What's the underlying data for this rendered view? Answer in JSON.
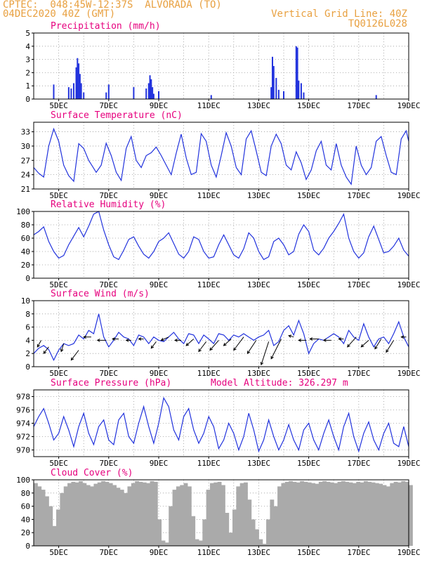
{
  "header": {
    "line1": "CPTEC:  048:45W-12:37S  ALVORADA (TO)",
    "line2": "04DEC2020 40Z (GMT)",
    "grid_note": "Vertical Grid Line: 40Z",
    "run_id": "TQ0126L028"
  },
  "colors": {
    "line": "#2233dd",
    "bar": "#2233dd",
    "cloud": "#aaaaaa",
    "title": "#e6007e",
    "header": "#e8a040",
    "grid": "#9a9a9a"
  },
  "chart_data": [
    {
      "type": "bar",
      "title": "Precipitation (mm/h)",
      "x_tick_labels": [
        "5DEC",
        "7DEC",
        "9DEC",
        "11DEC",
        "13DEC",
        "15DEC",
        "17DEC",
        "19DEC"
      ],
      "ylim": [
        0,
        5
      ],
      "y_ticks": [
        0,
        1,
        2,
        3,
        4,
        5
      ],
      "x_range_days": [
        4.0,
        19.0
      ],
      "x": [
        4.8,
        5.4,
        5.5,
        5.6,
        5.7,
        5.75,
        5.8,
        5.85,
        5.9,
        6.0,
        6.9,
        7.0,
        8.0,
        8.5,
        8.6,
        8.65,
        8.7,
        8.75,
        8.8,
        9.0,
        11.1,
        13.5,
        13.55,
        13.6,
        13.7,
        13.8,
        14.0,
        14.5,
        14.55,
        14.6,
        14.7,
        14.8,
        17.7
      ],
      "values": [
        1.1,
        0.9,
        0.8,
        1.2,
        2.4,
        3.1,
        2.7,
        1.9,
        1.2,
        0.5,
        0.5,
        1.1,
        0.9,
        0.8,
        1.2,
        1.8,
        1.5,
        0.9,
        0.4,
        0.6,
        0.3,
        0.9,
        3.2,
        2.5,
        1.6,
        0.7,
        0.6,
        4.0,
        3.9,
        1.4,
        1.2,
        0.5,
        0.3
      ]
    },
    {
      "type": "line",
      "title": "Surface Temperature (nC)",
      "x_tick_labels": [
        "5DEC",
        "7DEC",
        "9DEC",
        "11DEC",
        "13DEC",
        "15DEC",
        "17DEC",
        "19DEC"
      ],
      "ylim": [
        21,
        35
      ],
      "y_ticks": [
        21,
        24,
        27,
        30,
        33
      ],
      "x_range_days": [
        4.0,
        19.0
      ],
      "x": [
        4.0,
        4.2,
        4.4,
        4.6,
        4.8,
        5.0,
        5.2,
        5.4,
        5.6,
        5.8,
        6.0,
        6.2,
        6.5,
        6.7,
        6.9,
        7.1,
        7.3,
        7.5,
        7.7,
        7.9,
        8.1,
        8.3,
        8.5,
        8.7,
        8.9,
        9.1,
        9.3,
        9.5,
        9.7,
        9.9,
        10.1,
        10.3,
        10.5,
        10.7,
        10.9,
        11.1,
        11.3,
        11.5,
        11.7,
        11.9,
        12.1,
        12.3,
        12.5,
        12.7,
        12.9,
        13.1,
        13.3,
        13.5,
        13.7,
        13.9,
        14.1,
        14.3,
        14.5,
        14.7,
        14.9,
        15.1,
        15.3,
        15.5,
        15.7,
        15.9,
        16.1,
        16.3,
        16.5,
        16.7,
        16.9,
        17.1,
        17.3,
        17.5,
        17.7,
        17.9,
        18.1,
        18.3,
        18.5,
        18.7,
        18.9,
        19.0
      ],
      "values": [
        25.5,
        24.3,
        23.5,
        30.0,
        33.6,
        31.0,
        26.0,
        23.8,
        22.6,
        30.5,
        29.5,
        27.0,
        24.5,
        26.0,
        30.6,
        28.0,
        24.5,
        22.8,
        29.5,
        32.0,
        27.0,
        25.5,
        28.0,
        28.6,
        29.8,
        28.0,
        26.0,
        24.0,
        28.5,
        32.5,
        27.5,
        24.0,
        24.5,
        32.6,
        31.0,
        26.0,
        23.5,
        28.0,
        32.8,
        30.0,
        25.5,
        24.0,
        31.5,
        33.2,
        29.0,
        24.5,
        23.8,
        30.0,
        32.5,
        30.5,
        26.0,
        25.0,
        28.8,
        26.5,
        23.0,
        25.0,
        29.0,
        31.0,
        26.0,
        25.0,
        30.5,
        26.0,
        23.5,
        22.0,
        30.0,
        26.0,
        24.0,
        25.5,
        31.0,
        32.0,
        28.0,
        24.5,
        24.0,
        31.5,
        33.2,
        31.0
      ]
    },
    {
      "type": "line",
      "title": "Relative Humidity (%)",
      "x_tick_labels": [
        "5DEC",
        "7DEC",
        "9DEC",
        "11DEC",
        "13DEC",
        "15DEC",
        "17DEC",
        "19DEC"
      ],
      "ylim": [
        0,
        100
      ],
      "y_ticks": [
        0,
        20,
        40,
        60,
        80,
        100
      ],
      "x_range_days": [
        4.0,
        19.0
      ],
      "x": [
        4.0,
        4.2,
        4.4,
        4.6,
        4.8,
        5.0,
        5.2,
        5.4,
        5.6,
        5.8,
        6.0,
        6.2,
        6.4,
        6.6,
        6.8,
        7.0,
        7.2,
        7.4,
        7.6,
        7.8,
        8.0,
        8.2,
        8.4,
        8.6,
        8.8,
        9.0,
        9.2,
        9.4,
        9.6,
        9.8,
        10.0,
        10.2,
        10.4,
        10.6,
        10.8,
        11.0,
        11.2,
        11.4,
        11.6,
        11.8,
        12.0,
        12.2,
        12.4,
        12.6,
        12.8,
        13.0,
        13.2,
        13.4,
        13.6,
        13.8,
        14.0,
        14.2,
        14.4,
        14.6,
        14.8,
        15.0,
        15.2,
        15.4,
        15.6,
        15.8,
        16.0,
        16.2,
        16.4,
        16.6,
        16.8,
        17.0,
        17.2,
        17.4,
        17.6,
        17.8,
        18.0,
        18.2,
        18.4,
        18.6,
        18.8,
        19.0
      ],
      "values": [
        65,
        70,
        77,
        55,
        40,
        30,
        34,
        50,
        63,
        76,
        62,
        78,
        96,
        100,
        72,
        50,
        32,
        28,
        42,
        58,
        62,
        48,
        36,
        30,
        40,
        55,
        60,
        68,
        52,
        36,
        30,
        40,
        62,
        58,
        40,
        30,
        32,
        50,
        65,
        50,
        35,
        30,
        44,
        68,
        60,
        40,
        28,
        32,
        55,
        60,
        50,
        35,
        40,
        66,
        80,
        70,
        42,
        35,
        45,
        60,
        70,
        82,
        96,
        60,
        40,
        30,
        38,
        62,
        78,
        58,
        38,
        40,
        48,
        60,
        42,
        33
      ]
    },
    {
      "type": "line",
      "title": "Surface Wind (m/s)",
      "x_tick_labels": [
        "5DEC",
        "7DEC",
        "9DEC",
        "11DEC",
        "13DEC",
        "15DEC",
        "17DEC",
        "19DEC"
      ],
      "ylim": [
        0,
        10
      ],
      "y_ticks": [
        0,
        2,
        4,
        6,
        8,
        10
      ],
      "x_range_days": [
        4.0,
        19.0
      ],
      "x": [
        4.0,
        4.2,
        4.4,
        4.6,
        4.8,
        5.0,
        5.2,
        5.4,
        5.6,
        5.8,
        6.0,
        6.2,
        6.4,
        6.6,
        6.8,
        7.0,
        7.2,
        7.4,
        7.6,
        7.8,
        8.0,
        8.2,
        8.4,
        8.6,
        8.8,
        9.0,
        9.2,
        9.4,
        9.6,
        9.8,
        10.0,
        10.2,
        10.4,
        10.6,
        10.8,
        11.0,
        11.2,
        11.4,
        11.6,
        11.8,
        12.0,
        12.2,
        12.4,
        12.6,
        12.8,
        13.0,
        13.2,
        13.4,
        13.6,
        13.8,
        14.0,
        14.2,
        14.4,
        14.6,
        14.8,
        15.0,
        15.2,
        15.4,
        15.6,
        15.8,
        16.0,
        16.2,
        16.4,
        16.6,
        16.8,
        17.0,
        17.2,
        17.4,
        17.6,
        17.8,
        18.0,
        18.2,
        18.4,
        18.6,
        18.8,
        19.0
      ],
      "values": [
        2.0,
        2.8,
        3.2,
        2.6,
        1.0,
        2.5,
        3.5,
        3.2,
        3.5,
        4.8,
        4.2,
        5.5,
        5.0,
        8.0,
        4.5,
        3.0,
        4.0,
        5.2,
        4.5,
        4.2,
        3.2,
        4.8,
        4.5,
        3.5,
        4.5,
        4.0,
        3.8,
        4.5,
        5.2,
        4.2,
        3.5,
        5.0,
        4.8,
        3.5,
        4.8,
        4.2,
        3.5,
        5.0,
        4.8,
        4.0,
        4.8,
        4.5,
        5.0,
        4.5,
        4.0,
        4.5,
        4.8,
        5.5,
        3.2,
        3.8,
        5.5,
        6.2,
        4.8,
        7.0,
        5.0,
        2.0,
        3.5,
        4.2,
        4.0,
        4.5,
        5.0,
        4.5,
        3.5,
        5.5,
        4.5,
        4.0,
        6.5,
        4.5,
        3.0,
        4.2,
        4.5,
        3.5,
        5.0,
        6.8,
        4.5,
        3.0
      ],
      "arrows": {
        "x": [
          4.3,
          4.6,
          5.2,
          5.8,
          6.3,
          6.9,
          7.4,
          7.9,
          8.4,
          8.9,
          9.4,
          9.9,
          10.4,
          10.9,
          11.4,
          11.9,
          12.4,
          12.9,
          13.4,
          13.9,
          14.4,
          14.9,
          15.4,
          15.9,
          16.4,
          16.9,
          17.4,
          17.9,
          18.4,
          18.9
        ],
        "y": [
          4.0,
          3.0,
          3.5,
          2.5,
          4.5,
          4.0,
          4.2,
          4.0,
          4.2,
          3.8,
          4.5,
          4.0,
          4.2,
          3.8,
          4.0,
          4.2,
          4.5,
          4.0,
          3.8,
          4.2,
          4.5,
          4.0,
          4.2,
          4.0,
          4.2,
          4.5,
          4.0,
          4.2,
          4.0,
          4.5
        ],
        "dx": [
          -0.15,
          -0.2,
          -0.1,
          -0.3,
          -0.3,
          -0.35,
          -0.25,
          -0.2,
          -0.2,
          -0.2,
          -0.3,
          -0.25,
          -0.3,
          -0.3,
          -0.35,
          -0.3,
          -0.4,
          -0.35,
          -0.3,
          -0.4,
          -0.2,
          -0.3,
          -0.35,
          -0.3,
          -0.2,
          -0.35,
          -0.3,
          -0.25,
          -0.3,
          -0.2
        ],
        "dy": [
          -1.0,
          -1.0,
          -1.2,
          -1.5,
          0.0,
          0.0,
          0.0,
          0.0,
          0.0,
          -1.0,
          -0.5,
          0.0,
          -1.0,
          -1.5,
          -1.5,
          -1.0,
          -2.0,
          -2.0,
          -3.5,
          -3.0,
          0.2,
          0.0,
          0.0,
          0.0,
          0.0,
          -1.5,
          -1.0,
          -1.5,
          -1.8,
          0.0
        ]
      }
    },
    {
      "type": "line",
      "title": "Surface Pressure (hPa)",
      "annotation": "Model Altitude: 326.297 m",
      "x_tick_labels": [
        "5DEC",
        "7DEC",
        "9DEC",
        "11DEC",
        "13DEC",
        "15DEC",
        "17DEC",
        "19DEC"
      ],
      "ylim": [
        969,
        979
      ],
      "y_ticks": [
        970,
        972,
        974,
        976,
        978
      ],
      "x_range_days": [
        4.0,
        19.0
      ],
      "x": [
        4.0,
        4.2,
        4.4,
        4.6,
        4.8,
        5.0,
        5.2,
        5.4,
        5.6,
        5.8,
        6.0,
        6.2,
        6.4,
        6.6,
        6.8,
        7.0,
        7.2,
        7.4,
        7.6,
        7.8,
        8.0,
        8.2,
        8.4,
        8.6,
        8.8,
        9.0,
        9.2,
        9.4,
        9.6,
        9.8,
        10.0,
        10.2,
        10.4,
        10.6,
        10.8,
        11.0,
        11.2,
        11.4,
        11.6,
        11.8,
        12.0,
        12.2,
        12.4,
        12.6,
        12.8,
        13.0,
        13.2,
        13.4,
        13.6,
        13.8,
        14.0,
        14.2,
        14.4,
        14.6,
        14.8,
        15.0,
        15.2,
        15.4,
        15.6,
        15.8,
        16.0,
        16.2,
        16.4,
        16.6,
        16.8,
        17.0,
        17.2,
        17.4,
        17.6,
        17.8,
        18.0,
        18.2,
        18.4,
        18.6,
        18.8,
        19.0
      ],
      "values": [
        973.5,
        975.0,
        976.2,
        974.0,
        971.5,
        972.5,
        975.0,
        973.0,
        970.5,
        973.5,
        975.5,
        972.5,
        970.8,
        973.5,
        974.5,
        971.5,
        970.8,
        974.5,
        975.5,
        972.0,
        971.0,
        974.0,
        976.5,
        973.5,
        971.0,
        974.0,
        977.8,
        976.5,
        973.0,
        971.5,
        975.0,
        976.2,
        973.0,
        971.0,
        972.5,
        975.0,
        973.5,
        970.2,
        971.5,
        974.0,
        972.5,
        970.0,
        972.0,
        975.5,
        973.0,
        969.8,
        971.5,
        974.5,
        972.0,
        970.0,
        971.5,
        973.8,
        971.5,
        970.0,
        973.0,
        974.0,
        971.5,
        970.0,
        972.5,
        974.5,
        972.0,
        970.0,
        973.5,
        975.5,
        972.0,
        969.8,
        972.5,
        974.2,
        971.5,
        970.0,
        972.5,
        974.0,
        971.0,
        970.5,
        973.5,
        970.5
      ]
    },
    {
      "type": "area",
      "title": "Cloud Cover (%)",
      "x_tick_labels": [
        "5DEC",
        "7DEC",
        "9DEC",
        "11DEC",
        "13DEC",
        "15DEC",
        "17DEC",
        "19DEC"
      ],
      "ylim": [
        0,
        100
      ],
      "y_ticks": [
        0,
        20,
        40,
        60,
        80,
        100
      ],
      "x_range_days": [
        4.0,
        19.0
      ],
      "x": [
        4.0,
        4.15,
        4.3,
        4.45,
        4.6,
        4.75,
        4.9,
        5.05,
        5.2,
        5.35,
        5.5,
        5.65,
        5.8,
        5.95,
        6.1,
        6.25,
        6.4,
        6.55,
        6.7,
        6.85,
        7.0,
        7.15,
        7.3,
        7.45,
        7.6,
        7.75,
        7.9,
        8.05,
        8.2,
        8.35,
        8.5,
        8.65,
        8.8,
        8.95,
        9.1,
        9.25,
        9.4,
        9.55,
        9.7,
        9.85,
        10.0,
        10.15,
        10.3,
        10.45,
        10.6,
        10.75,
        10.9,
        11.05,
        11.2,
        11.35,
        11.5,
        11.65,
        11.8,
        11.95,
        12.1,
        12.25,
        12.4,
        12.55,
        12.7,
        12.85,
        13.0,
        13.15,
        13.3,
        13.45,
        13.6,
        13.75,
        13.9,
        14.05,
        14.2,
        14.35,
        14.5,
        14.65,
        14.8,
        14.95,
        15.1,
        15.25,
        15.4,
        15.55,
        15.7,
        15.85,
        16.0,
        16.15,
        16.3,
        16.45,
        16.6,
        16.75,
        16.9,
        17.05,
        17.2,
        17.35,
        17.5,
        17.65,
        17.8,
        17.95,
        18.1,
        18.25,
        18.4,
        18.55,
        18.7,
        18.85,
        19.0
      ],
      "values": [
        95,
        90,
        85,
        75,
        60,
        30,
        55,
        80,
        90,
        95,
        97,
        96,
        98,
        95,
        92,
        90,
        94,
        96,
        98,
        97,
        95,
        92,
        88,
        85,
        80,
        90,
        95,
        98,
        97,
        96,
        95,
        98,
        97,
        40,
        8,
        5,
        60,
        85,
        90,
        92,
        95,
        90,
        45,
        10,
        8,
        40,
        85,
        95,
        96,
        97,
        92,
        50,
        20,
        55,
        90,
        95,
        96,
        70,
        40,
        25,
        10,
        3,
        40,
        70,
        60,
        90,
        95,
        97,
        98,
        97,
        96,
        98,
        97,
        96,
        95,
        94,
        97,
        98,
        97,
        96,
        95,
        97,
        98,
        97,
        96,
        95,
        97,
        96,
        98,
        97,
        96,
        95,
        94,
        92,
        90,
        95,
        97,
        96,
        98,
        97,
        92
      ]
    }
  ]
}
